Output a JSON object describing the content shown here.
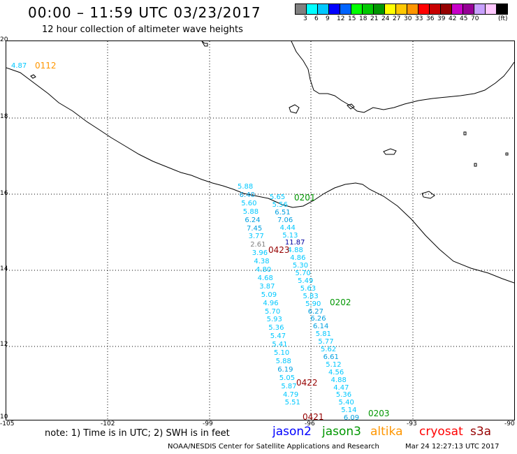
{
  "header": {
    "title": "00:00 – 11:59 UTC 03/23/2017",
    "subtitle": "12 hour collection of altimeter wave heights"
  },
  "legend": {
    "unit": "(ft)",
    "colors": [
      "#808080",
      "#00ffff",
      "#00c8ff",
      "#0000ff",
      "#0064ff",
      "#00ff00",
      "#00c800",
      "#009600",
      "#ffff00",
      "#ffc800",
      "#ff9600",
      "#ff0000",
      "#c80000",
      "#960000",
      "#c800c8",
      "#960096",
      "#c8a0ff",
      "#ffc8ff",
      "#000000"
    ],
    "labels": [
      "3",
      "6",
      "9",
      "12",
      "15",
      "18",
      "21",
      "24",
      "27",
      "30",
      "33",
      "36",
      "39",
      "42",
      "45",
      "70"
    ]
  },
  "axes": {
    "lat_labels": [
      "20",
      "18",
      "16",
      "14",
      "12",
      "10"
    ],
    "lon_labels": [
      "-105",
      "-102",
      "-99",
      "-96",
      "-93",
      "-90"
    ]
  },
  "tracks": {
    "track_a": [
      "5.88",
      "6.40",
      "5.60",
      "5.88",
      "6.24",
      "7.45",
      "3.77",
      "2.61",
      "3.96",
      "4.38",
      "4.80",
      "4.68",
      "3.87",
      "5.09",
      "4.96",
      "5.70",
      "5.93",
      "5.36",
      "5.47",
      "5.41",
      "5.10",
      "5.88",
      "6.19",
      "5.05",
      "5.87",
      "4.79",
      "5.51"
    ],
    "track_b": [
      "5.65",
      "5.56",
      "6.51",
      "7.06",
      "4.44",
      "5.13",
      "11.87",
      "4.88",
      "4.86",
      "5.30",
      "5.70",
      "5.49",
      "5.63",
      "5.83",
      "5.90",
      "6.27",
      "6.26",
      "6.14",
      "5.81",
      "5.77",
      "5.62",
      "6.61",
      "5.12",
      "4.56",
      "4.88",
      "4.47",
      "5.36",
      "5.40",
      "5.14",
      "6.09"
    ],
    "corner_value": "4.87"
  },
  "time_labels": {
    "t0112": "0112",
    "t0201": "0201",
    "t0423": "0423",
    "t0202": "0202",
    "t0422": "0422",
    "t0203": "0203",
    "t0421": "0421"
  },
  "footer": {
    "note": "note:  1) Time is in UTC;  2) SWH is in feet",
    "satellites": [
      {
        "name": "jason2",
        "color": "#0000ff"
      },
      {
        "name": "jason3",
        "color": "#009600"
      },
      {
        "name": "altika",
        "color": "#ff9600"
      },
      {
        "name": "cryosat",
        "color": "#ff0000"
      },
      {
        "name": "s3a",
        "color": "#960000"
      }
    ],
    "credit": "NOAA/NESDIS Center for Satellite Applications and Research",
    "stamp": "Mar 24 12:27:13 UTC 2017"
  }
}
